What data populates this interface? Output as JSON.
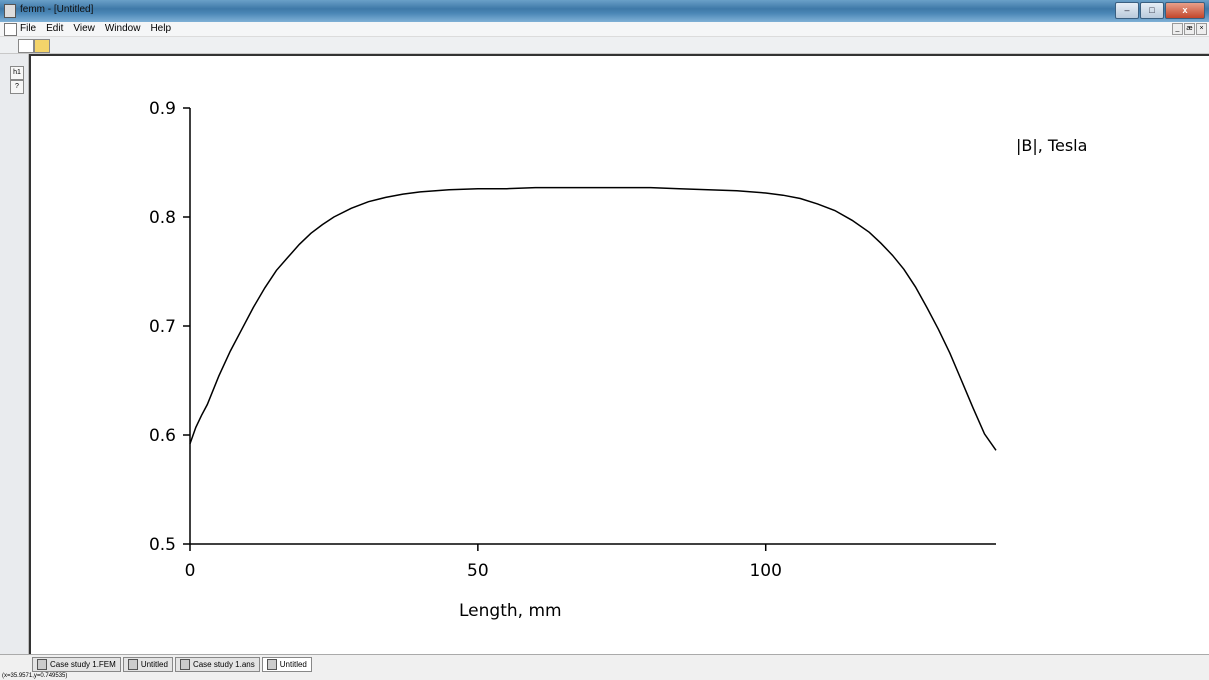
{
  "window": {
    "title": "femm - [Untitled]"
  },
  "menu": {
    "items": [
      "File",
      "Edit",
      "View",
      "Window",
      "Help"
    ]
  },
  "mdi_controls": [
    "_",
    "æ",
    "×"
  ],
  "window_controls": {
    "minimize": "–",
    "maximize": "□",
    "close": "x"
  },
  "toolbar": {
    "new_icon": "new-document-icon",
    "open_icon": "open-folder-icon"
  },
  "left_toolbar": {
    "buttons": [
      {
        "label": "h1",
        "icon": "plot-field-icon"
      },
      {
        "label": "?",
        "icon": "help-icon"
      }
    ]
  },
  "tabs": [
    {
      "label": "Case study 1.FEM",
      "icon": "femm-doc-icon",
      "active": false
    },
    {
      "label": "Untitled",
      "icon": "femm-doc-icon",
      "active": false
    },
    {
      "label": "Case study 1.ans",
      "icon": "postprocessor-icon",
      "active": false
    },
    {
      "label": "Untitled",
      "icon": "plot-icon",
      "active": true
    }
  ],
  "status": {
    "coords": "(x=35.9571,y=0.749535)"
  },
  "chart_data": {
    "type": "line",
    "title": "",
    "xlabel": "Length, mm",
    "ylabel": "",
    "legend_text": "|B|, Tesla",
    "legend_position": "top-right",
    "xlim": [
      0,
      140
    ],
    "ylim": [
      0.5,
      0.9
    ],
    "xticks": [
      0,
      50,
      100
    ],
    "yticks": [
      0.5,
      0.6,
      0.7,
      0.8,
      0.9
    ],
    "grid": false,
    "line_color": "#000000",
    "series": [
      {
        "name": "|B|, Tesla",
        "x": [
          0,
          1,
          2,
          3,
          5,
          7,
          9,
          11,
          13,
          15,
          17,
          19,
          21,
          23,
          25,
          28,
          31,
          34,
          37,
          40,
          45,
          50,
          55,
          60,
          65,
          70,
          75,
          80,
          85,
          90,
          95,
          100,
          103,
          106,
          109,
          112,
          115,
          118,
          120,
          122,
          124,
          126,
          128,
          130,
          132,
          134,
          136,
          138,
          140
        ],
        "y": [
          0.592,
          0.607,
          0.618,
          0.628,
          0.654,
          0.677,
          0.697,
          0.717,
          0.735,
          0.751,
          0.763,
          0.775,
          0.785,
          0.793,
          0.8,
          0.808,
          0.814,
          0.818,
          0.821,
          0.823,
          0.825,
          0.826,
          0.826,
          0.827,
          0.827,
          0.827,
          0.827,
          0.827,
          0.826,
          0.825,
          0.824,
          0.822,
          0.82,
          0.817,
          0.812,
          0.806,
          0.797,
          0.786,
          0.776,
          0.765,
          0.752,
          0.736,
          0.717,
          0.697,
          0.675,
          0.65,
          0.625,
          0.601,
          0.586
        ]
      }
    ]
  }
}
